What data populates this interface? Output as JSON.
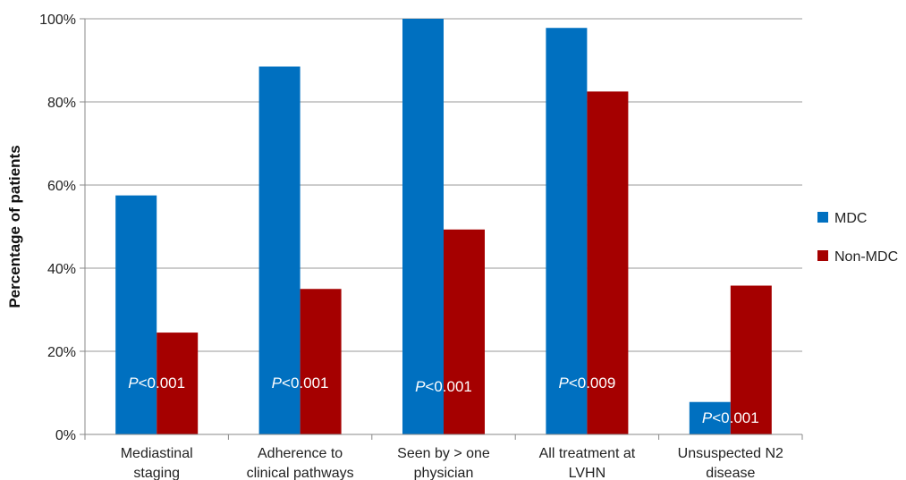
{
  "chart_data": {
    "type": "bar",
    "categories": [
      [
        "Mediastinal",
        "staging"
      ],
      [
        "Adherence to",
        "clinical pathways"
      ],
      [
        "Seen by > one",
        "physician"
      ],
      [
        "All treatment at",
        "LVHN"
      ],
      [
        "Unsuspected N2",
        "disease"
      ]
    ],
    "series": [
      {
        "name": "MDC",
        "color": "#0070c0",
        "values": [
          57.5,
          88.5,
          100,
          97.8,
          7.8
        ]
      },
      {
        "name": "Non-MDC",
        "color": "#a50000",
        "values": [
          24.5,
          35,
          49.3,
          82.5,
          35.8
        ]
      }
    ],
    "ylabel": "Percentage of patients",
    "ylim": [
      0,
      100
    ],
    "yticks": [
      "0%",
      "20%",
      "40%",
      "60%",
      "80%",
      "100%"
    ],
    "annotations": [
      {
        "category_index": 0,
        "p_italic": "P",
        "p_rest": "<0.001"
      },
      {
        "category_index": 1,
        "p_italic": "P",
        "p_rest": "<0.001"
      },
      {
        "category_index": 2,
        "p_italic": "P",
        "p_rest": "<0.001"
      },
      {
        "category_index": 3,
        "p_italic": "P",
        "p_rest": "<0.009"
      },
      {
        "category_index": 4,
        "p_italic": "P",
        "p_rest": "<0.001"
      }
    ],
    "grid": true,
    "legend": "right"
  }
}
